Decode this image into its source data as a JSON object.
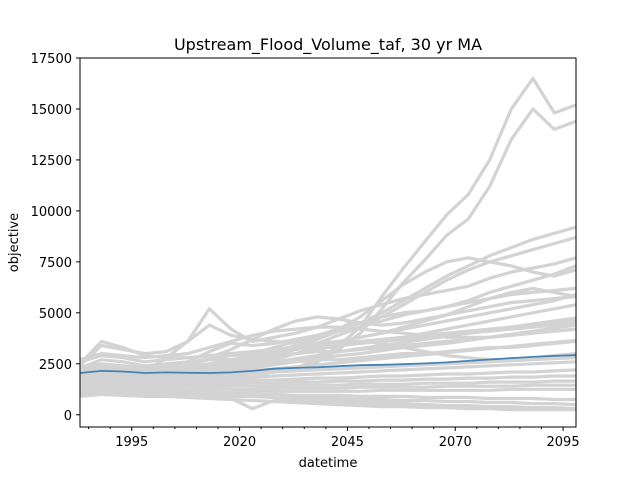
{
  "chart_data": {
    "type": "line",
    "title": "Upstream_Flood_Volume_taf, 30 yr MA",
    "xlabel": "datetime",
    "ylabel": "objective",
    "xlim": [
      1983,
      2098
    ],
    "ylim": [
      -600,
      17500
    ],
    "x_ticks": [
      1995,
      2020,
      2045,
      2070,
      2095
    ],
    "x_minor_ticks": [
      1985,
      1990,
      2000,
      2005,
      2010,
      2015,
      2025,
      2030,
      2035,
      2040,
      2050,
      2055,
      2060,
      2065,
      2075,
      2080,
      2085,
      2090
    ],
    "y_ticks": [
      0,
      2500,
      5000,
      7500,
      10000,
      12500,
      15000,
      17500
    ],
    "grid": false,
    "colors": {
      "ensemble": "#d3d3d3",
      "mean": "#4682b4"
    },
    "x": [
      1983,
      1988,
      1993,
      1998,
      2003,
      2008,
      2013,
      2018,
      2023,
      2028,
      2033,
      2038,
      2043,
      2048,
      2053,
      2058,
      2063,
      2068,
      2073,
      2078,
      2083,
      2088,
      2093,
      2098
    ],
    "series": [
      {
        "role": "mean",
        "values": [
          2050,
          2150,
          2120,
          2050,
          2080,
          2060,
          2050,
          2080,
          2150,
          2260,
          2300,
          2330,
          2380,
          2430,
          2450,
          2480,
          2520,
          2570,
          2640,
          2710,
          2780,
          2840,
          2890,
          2920
        ]
      },
      {
        "role": "ensemble",
        "values": [
          1900,
          2100,
          2000,
          1850,
          1900,
          1850,
          1800,
          1900,
          2000,
          2150,
          2300,
          2700,
          3400,
          4300,
          5800,
          7200,
          8500,
          9800,
          10800,
          12500,
          15000,
          16500,
          14800,
          15200
        ]
      },
      {
        "role": "ensemble",
        "values": [
          1800,
          2000,
          1900,
          1800,
          1850,
          1800,
          1750,
          1850,
          1950,
          2100,
          2250,
          2600,
          3200,
          4000,
          5200,
          6500,
          7600,
          8800,
          9600,
          11200,
          13500,
          15000,
          14000,
          14400
        ]
      },
      {
        "role": "ensemble",
        "values": [
          2200,
          2400,
          2300,
          2200,
          2300,
          2400,
          2500,
          2700,
          2900,
          3100,
          3400,
          3700,
          4100,
          4500,
          5000,
          5600,
          6200,
          6800,
          7300,
          7800,
          8200,
          8600,
          8900,
          9200
        ]
      },
      {
        "role": "ensemble",
        "values": [
          2100,
          2300,
          2200,
          2100,
          2200,
          2300,
          2400,
          2550,
          2750,
          2950,
          3200,
          3500,
          3900,
          4300,
          4800,
          5400,
          6000,
          6600,
          7100,
          7500,
          7800,
          8100,
          8400,
          8700
        ]
      },
      {
        "role": "ensemble",
        "values": [
          2000,
          2200,
          2100,
          2000,
          2100,
          2200,
          2300,
          2500,
          2800,
          3100,
          3400,
          3700,
          4200,
          4800,
          5600,
          6400,
          7000,
          7500,
          7700,
          7500,
          7300,
          7000,
          6800,
          7100
        ]
      },
      {
        "role": "ensemble",
        "values": [
          1900,
          2100,
          2000,
          2100,
          2800,
          3600,
          5200,
          4200,
          3600,
          3800,
          4000,
          4300,
          4700,
          5100,
          5400,
          5700,
          5900,
          6100,
          6300,
          6700,
          7000,
          7200,
          7400,
          7700
        ]
      },
      {
        "role": "ensemble",
        "values": [
          2300,
          2500,
          2400,
          2300,
          2400,
          2500,
          2700,
          2900,
          3000,
          3300,
          3600,
          3800,
          4100,
          4300,
          4600,
          4900,
          5100,
          5300,
          5600,
          6000,
          6300,
          6600,
          6900,
          7300
        ]
      },
      {
        "role": "ensemble",
        "values": [
          2200,
          2300,
          2200,
          2100,
          2300,
          2600,
          3100,
          3500,
          3400,
          3500,
          3700,
          3900,
          4200,
          4500,
          4800,
          5000,
          5100,
          5300,
          5500,
          5700,
          5900,
          6000,
          6100,
          6200
        ]
      },
      {
        "role": "ensemble",
        "values": [
          2100,
          2200,
          2100,
          2000,
          2100,
          2200,
          2400,
          2600,
          2800,
          3000,
          3200,
          3400,
          3600,
          3800,
          4000,
          4200,
          4400,
          4600,
          4800,
          5000,
          5200,
          5400,
          5600,
          5900
        ]
      },
      {
        "role": "ensemble",
        "values": [
          2000,
          2100,
          2000,
          1950,
          2000,
          2100,
          2200,
          2400,
          2600,
          2800,
          3000,
          3200,
          3400,
          3500,
          3700,
          3800,
          4000,
          4200,
          4400,
          4600,
          4800,
          5000,
          5200,
          5400
        ]
      },
      {
        "role": "ensemble",
        "values": [
          1950,
          2050,
          1950,
          1900,
          1950,
          2050,
          2150,
          2300,
          2450,
          2600,
          2750,
          2900,
          3100,
          3250,
          3400,
          3550,
          3700,
          3850,
          4000,
          4150,
          4300,
          4450,
          4600,
          4750
        ]
      },
      {
        "role": "ensemble",
        "values": [
          1900,
          2000,
          1900,
          1850,
          1900,
          1950,
          2050,
          2150,
          2300,
          2450,
          2600,
          2750,
          2900,
          3000,
          3150,
          3300,
          3400,
          3500,
          3650,
          3800,
          3950,
          4100,
          4250,
          4400
        ]
      },
      {
        "role": "ensemble",
        "values": [
          1700,
          1850,
          1800,
          1750,
          1800,
          1850,
          1950,
          2050,
          2150,
          2250,
          2350,
          2450,
          2550,
          2650,
          2750,
          2850,
          2950,
          3050,
          3150,
          3250,
          3350,
          3450,
          3550,
          3650
        ]
      },
      {
        "role": "ensemble",
        "values": [
          2600,
          2900,
          2800,
          2600,
          2700,
          2800,
          2900,
          3000,
          3100,
          3200,
          3300,
          3400,
          3500,
          3600,
          3700,
          3800,
          3900,
          4000,
          4100,
          4200,
          4300,
          4400,
          4500,
          4600
        ]
      },
      {
        "role": "ensemble",
        "values": [
          2500,
          3600,
          3300,
          2900,
          2800,
          2800,
          2900,
          3000,
          3100,
          3200,
          3300,
          3300,
          3400,
          3500,
          3600,
          3700,
          3800,
          3900,
          4000,
          4100,
          4200,
          4300,
          4400,
          4500
        ]
      },
      {
        "role": "ensemble",
        "values": [
          2300,
          2700,
          2600,
          2400,
          2500,
          2600,
          2700,
          2700,
          2800,
          2900,
          3000,
          3100,
          3100,
          3200,
          3300,
          3400,
          3500,
          3600,
          3700,
          3800,
          3900,
          4000,
          4100,
          4200
        ]
      },
      {
        "role": "ensemble",
        "values": [
          2100,
          2300,
          2200,
          2100,
          2200,
          2200,
          2300,
          2400,
          2500,
          2500,
          2600,
          2700,
          2700,
          2800,
          2900,
          3000,
          3000,
          3100,
          3200,
          3300,
          3300,
          3400,
          3500,
          3600
        ]
      },
      {
        "role": "ensemble",
        "values": [
          1800,
          1900,
          1850,
          1800,
          1850,
          1900,
          1950,
          2000,
          2050,
          2100,
          2150,
          2200,
          2250,
          2300,
          2350,
          2400,
          2450,
          2500,
          2550,
          2600,
          2650,
          2700,
          2750,
          2800
        ]
      },
      {
        "role": "ensemble",
        "values": [
          1600,
          1700,
          1650,
          1600,
          1650,
          1700,
          1750,
          1800,
          1850,
          1900,
          1950,
          2000,
          2050,
          2100,
          2150,
          2200,
          2250,
          2300,
          2350,
          2400,
          2450,
          2500,
          2550,
          2600
        ]
      },
      {
        "role": "ensemble",
        "values": [
          1500,
          1600,
          1550,
          1500,
          1550,
          1550,
          1600,
          1650,
          1700,
          1700,
          1750,
          1800,
          1800,
          1850,
          1900,
          1900,
          1950,
          2000,
          2000,
          2050,
          2100,
          2100,
          2150,
          2200
        ]
      },
      {
        "role": "ensemble",
        "values": [
          1400,
          1500,
          1450,
          1400,
          1450,
          1450,
          1500,
          1500,
          1550,
          1550,
          1600,
          1600,
          1650,
          1650,
          1700,
          1700,
          1750,
          1750,
          1800,
          1800,
          1850,
          1850,
          1900,
          1900
        ]
      },
      {
        "role": "ensemble",
        "values": [
          1300,
          1400,
          1350,
          1300,
          1300,
          1350,
          1350,
          1400,
          1400,
          1400,
          1450,
          1450,
          1450,
          1500,
          1500,
          1500,
          1550,
          1550,
          1550,
          1600,
          1600,
          1600,
          1650,
          1650
        ]
      },
      {
        "role": "ensemble",
        "values": [
          1200,
          1300,
          1250,
          1200,
          1200,
          1200,
          1250,
          1250,
          1250,
          1300,
          1300,
          1300,
          1300,
          1350,
          1350,
          1350,
          1350,
          1400,
          1400,
          1400,
          1400,
          1450,
          1450,
          1450
        ]
      },
      {
        "role": "ensemble",
        "values": [
          1100,
          1200,
          1150,
          1100,
          1100,
          1100,
          1100,
          1100,
          1150,
          1150,
          1150,
          1150,
          1150,
          1150,
          1200,
          1200,
          1200,
          1200,
          1200,
          1200,
          1250,
          1250,
          1250,
          1250
        ]
      },
      {
        "role": "ensemble",
        "values": [
          1100,
          1150,
          1100,
          1050,
          1050,
          1050,
          1050,
          1000,
          1000,
          1000,
          950,
          950,
          950,
          900,
          900,
          900,
          850,
          850,
          850,
          800,
          800,
          800,
          750,
          750
        ]
      },
      {
        "role": "ensemble",
        "values": [
          1000,
          1100,
          1050,
          1000,
          1000,
          950,
          950,
          900,
          900,
          850,
          850,
          800,
          800,
          750,
          750,
          700,
          700,
          650,
          650,
          600,
          600,
          550,
          550,
          500
        ]
      },
      {
        "role": "ensemble",
        "values": [
          1000,
          1050,
          1000,
          950,
          950,
          900,
          850,
          800,
          300,
          700,
          700,
          650,
          600,
          600,
          550,
          500,
          500,
          450,
          450,
          400,
          400,
          350,
          350,
          300
        ]
      },
      {
        "role": "ensemble",
        "values": [
          900,
          1000,
          950,
          900,
          900,
          850,
          800,
          750,
          700,
          650,
          600,
          550,
          500,
          450,
          400,
          400,
          350,
          350,
          300,
          300,
          250,
          250,
          250,
          250
        ]
      },
      {
        "role": "ensemble",
        "values": [
          1200,
          1300,
          1200,
          1150,
          1100,
          1050,
          1000,
          950,
          900,
          850,
          800,
          750,
          700,
          650,
          600,
          550,
          500,
          450,
          400,
          350,
          300,
          300,
          300,
          300
        ]
      },
      {
        "role": "ensemble",
        "values": [
          2700,
          3000,
          2900,
          2800,
          2900,
          3000,
          3300,
          3600,
          3900,
          4100,
          4200,
          4300,
          4300,
          4200,
          4100,
          4000,
          3900,
          3800,
          3800,
          3800,
          3900,
          4000,
          4100,
          4200
        ]
      },
      {
        "role": "ensemble",
        "values": [
          2400,
          3400,
          3200,
          3000,
          3100,
          3600,
          4400,
          3900,
          3700,
          3600,
          3500,
          3500,
          3600,
          3800,
          4000,
          4300,
          4600,
          4900,
          5300,
          5700,
          6000,
          6200,
          6000,
          5800
        ]
      },
      {
        "role": "ensemble",
        "values": [
          2200,
          2400,
          2300,
          2200,
          2300,
          2500,
          2800,
          3200,
          3700,
          4200,
          4600,
          4800,
          4700,
          4500,
          4400,
          4500,
          4700,
          4900,
          5100,
          5300,
          5500,
          5600,
          5700,
          5800
        ]
      },
      {
        "role": "ensemble",
        "values": [
          1800,
          1900,
          1800,
          1750,
          1800,
          1900,
          2000,
          2200,
          2400,
          2700,
          3000,
          3300,
          3500,
          3600,
          3500,
          3300,
          3100,
          2900,
          2800,
          2700,
          2700,
          2800,
          2900,
          3000
        ]
      }
    ]
  }
}
